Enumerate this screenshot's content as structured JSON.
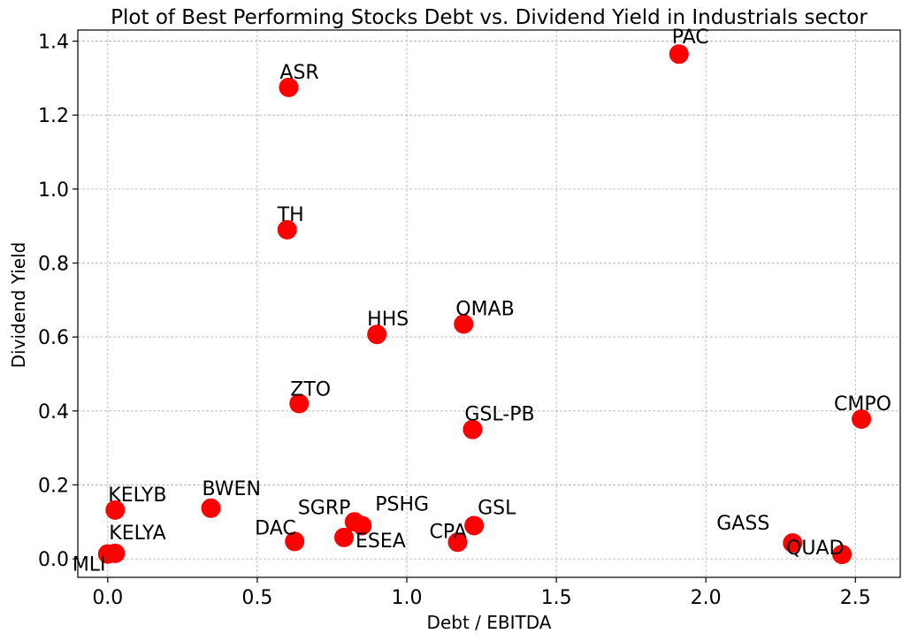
{
  "chart_data": {
    "type": "scatter",
    "title": "Plot of Best Performing Stocks Debt vs. Dividend Yield in Industrials sector",
    "xlabel": "Debt / EBITDA",
    "ylabel": "Dividend Yield",
    "xlim": [
      -0.1,
      2.65
    ],
    "ylim": [
      -0.05,
      1.43
    ],
    "xticks": [
      0.0,
      0.5,
      1.0,
      1.5,
      2.0,
      2.5
    ],
    "xtick_labels": [
      "0.0",
      "0.5",
      "1.0",
      "1.5",
      "2.0",
      "2.5"
    ],
    "yticks": [
      0.0,
      0.2,
      0.4,
      0.6,
      0.8,
      1.0,
      1.2,
      1.4
    ],
    "ytick_labels": [
      "0.0",
      "0.2",
      "0.4",
      "0.6",
      "0.8",
      "1.0",
      "1.2",
      "1.4"
    ],
    "grid": true,
    "marker_color": "#ff0000",
    "points": [
      {
        "label": "PAC",
        "x": 1.91,
        "y": 1.365
      },
      {
        "label": "ASR",
        "x": 0.605,
        "y": 1.275
      },
      {
        "label": "TH",
        "x": 0.6,
        "y": 0.89
      },
      {
        "label": "HHS",
        "x": 0.9,
        "y": 0.607
      },
      {
        "label": "OMAB",
        "x": 1.19,
        "y": 0.635
      },
      {
        "label": "ZTO",
        "x": 0.64,
        "y": 0.42
      },
      {
        "label": "GSL-PB",
        "x": 1.22,
        "y": 0.35
      },
      {
        "label": "CMPO",
        "x": 2.52,
        "y": 0.378
      },
      {
        "label": "KELYB",
        "x": 0.025,
        "y": 0.132
      },
      {
        "label": "BWEN",
        "x": 0.345,
        "y": 0.137
      },
      {
        "label": "SGRP",
        "x": 0.825,
        "y": 0.1
      },
      {
        "label": "PSHG",
        "x": 0.85,
        "y": 0.09
      },
      {
        "label": "GSL",
        "x": 1.225,
        "y": 0.09
      },
      {
        "label": "DAC",
        "x": 0.625,
        "y": 0.047
      },
      {
        "label": "ESEA",
        "x": 0.79,
        "y": 0.058
      },
      {
        "label": "CPA",
        "x": 1.17,
        "y": 0.045
      },
      {
        "label": "GASS",
        "x": 2.29,
        "y": 0.043
      },
      {
        "label": "QUAD",
        "x": 2.455,
        "y": 0.012
      },
      {
        "label": "KELYA",
        "x": 0.025,
        "y": 0.015
      },
      {
        "label": "MLI",
        "x": 0.0,
        "y": 0.013
      }
    ]
  }
}
